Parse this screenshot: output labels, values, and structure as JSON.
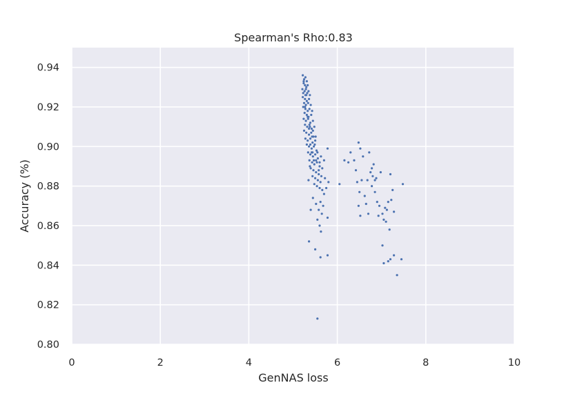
{
  "chart_data": {
    "type": "scatter",
    "title": "Spearman's Rho:0.83",
    "xlabel": "GenNAS loss",
    "ylabel": "Accuracy (%)",
    "xlim": [
      0,
      10
    ],
    "ylim": [
      0.8,
      0.95
    ],
    "xticks": [
      "0",
      "2",
      "4",
      "6",
      "8",
      "10"
    ],
    "yticks": [
      "0.80",
      "0.82",
      "0.84",
      "0.86",
      "0.88",
      "0.90",
      "0.92",
      "0.94"
    ],
    "grid": true,
    "colors": {
      "background": "#EAEAF2",
      "grid": "#FFFFFF",
      "point": "#4C72B0"
    },
    "points": [
      [
        5.22,
        0.936
      ],
      [
        5.25,
        0.934
      ],
      [
        5.28,
        0.935
      ],
      [
        5.31,
        0.933
      ],
      [
        5.24,
        0.932
      ],
      [
        5.27,
        0.931
      ],
      [
        5.3,
        0.93
      ],
      [
        5.33,
        0.931
      ],
      [
        5.21,
        0.929
      ],
      [
        5.26,
        0.928
      ],
      [
        5.29,
        0.929
      ],
      [
        5.35,
        0.928
      ],
      [
        5.23,
        0.927
      ],
      [
        5.28,
        0.926
      ],
      [
        5.32,
        0.927
      ],
      [
        5.38,
        0.926
      ],
      [
        5.22,
        0.925
      ],
      [
        5.27,
        0.924
      ],
      [
        5.31,
        0.923
      ],
      [
        5.36,
        0.924
      ],
      [
        5.25,
        0.922
      ],
      [
        5.29,
        0.921
      ],
      [
        5.34,
        0.922
      ],
      [
        5.4,
        0.921
      ],
      [
        5.23,
        0.92
      ],
      [
        5.28,
        0.919
      ],
      [
        5.33,
        0.918
      ],
      [
        5.37,
        0.919
      ],
      [
        5.43,
        0.918
      ],
      [
        5.26,
        0.917
      ],
      [
        5.31,
        0.916
      ],
      [
        5.35,
        0.915
      ],
      [
        5.41,
        0.916
      ],
      [
        5.24,
        0.914
      ],
      [
        5.29,
        0.913
      ],
      [
        5.34,
        0.914
      ],
      [
        5.39,
        0.912
      ],
      [
        5.45,
        0.913
      ],
      [
        5.27,
        0.911
      ],
      [
        5.32,
        0.91
      ],
      [
        5.37,
        0.911
      ],
      [
        5.42,
        0.909
      ],
      [
        5.48,
        0.91
      ],
      [
        5.25,
        0.908
      ],
      [
        5.3,
        0.907
      ],
      [
        5.36,
        0.906
      ],
      [
        5.41,
        0.907
      ],
      [
        5.46,
        0.905
      ],
      [
        5.28,
        0.904
      ],
      [
        5.33,
        0.903
      ],
      [
        5.39,
        0.904
      ],
      [
        5.44,
        0.902
      ],
      [
        5.5,
        0.903
      ],
      [
        5.31,
        0.901
      ],
      [
        5.36,
        0.9
      ],
      [
        5.42,
        0.899
      ],
      [
        5.47,
        0.9
      ],
      [
        5.53,
        0.898
      ],
      [
        5.34,
        0.897
      ],
      [
        5.39,
        0.896
      ],
      [
        5.45,
        0.895
      ],
      [
        5.5,
        0.896
      ],
      [
        5.56,
        0.894
      ],
      [
        5.37,
        0.893
      ],
      [
        5.43,
        0.892
      ],
      [
        5.48,
        0.891
      ],
      [
        5.54,
        0.892
      ],
      [
        5.6,
        0.89
      ],
      [
        5.4,
        0.889
      ],
      [
        5.46,
        0.888
      ],
      [
        5.52,
        0.887
      ],
      [
        5.58,
        0.886
      ],
      [
        5.44,
        0.885
      ],
      [
        5.5,
        0.884
      ],
      [
        5.56,
        0.883
      ],
      [
        5.62,
        0.882
      ],
      [
        5.48,
        0.881
      ],
      [
        5.54,
        0.88
      ],
      [
        5.6,
        0.879
      ],
      [
        5.66,
        0.878
      ],
      [
        5.24,
        0.933
      ],
      [
        5.3,
        0.926
      ],
      [
        5.27,
        0.92
      ],
      [
        5.33,
        0.915
      ],
      [
        5.38,
        0.91
      ],
      [
        5.43,
        0.905
      ],
      [
        5.49,
        0.901
      ],
      [
        5.55,
        0.897
      ],
      [
        5.52,
        0.893
      ],
      [
        5.6,
        0.892
      ],
      [
        5.35,
        0.883
      ],
      [
        5.45,
        0.874
      ],
      [
        5.52,
        0.871
      ],
      [
        5.58,
        0.868
      ],
      [
        5.65,
        0.866
      ],
      [
        5.4,
        0.868
      ],
      [
        5.62,
        0.872
      ],
      [
        5.7,
        0.876
      ],
      [
        5.75,
        0.879
      ],
      [
        5.8,
        0.882
      ],
      [
        5.55,
        0.863
      ],
      [
        5.6,
        0.86
      ],
      [
        5.63,
        0.857
      ],
      [
        5.78,
        0.864
      ],
      [
        5.68,
        0.87
      ],
      [
        5.72,
        0.884
      ],
      [
        5.78,
        0.899
      ],
      [
        5.66,
        0.889
      ],
      [
        5.7,
        0.893
      ],
      [
        5.64,
        0.885
      ],
      [
        5.36,
        0.852
      ],
      [
        5.5,
        0.848
      ],
      [
        5.62,
        0.844
      ],
      [
        5.78,
        0.845
      ],
      [
        5.55,
        0.813
      ],
      [
        5.42,
        0.897
      ],
      [
        5.47,
        0.893
      ],
      [
        5.38,
        0.89
      ],
      [
        5.58,
        0.888
      ],
      [
        5.63,
        0.895
      ],
      [
        5.45,
        0.908
      ],
      [
        5.51,
        0.905
      ],
      [
        5.39,
        0.901
      ],
      [
        5.44,
        0.897
      ],
      [
        5.36,
        0.909
      ],
      [
        6.05,
        0.881
      ],
      [
        6.16,
        0.893
      ],
      [
        6.25,
        0.892
      ],
      [
        6.3,
        0.897
      ],
      [
        6.38,
        0.893
      ],
      [
        6.42,
        0.888
      ],
      [
        6.48,
        0.902
      ],
      [
        6.52,
        0.899
      ],
      [
        6.58,
        0.895
      ],
      [
        6.45,
        0.882
      ],
      [
        6.5,
        0.877
      ],
      [
        6.55,
        0.883
      ],
      [
        6.62,
        0.875
      ],
      [
        6.68,
        0.883
      ],
      [
        6.72,
        0.897
      ],
      [
        6.75,
        0.887
      ],
      [
        6.78,
        0.889
      ],
      [
        6.8,
        0.885
      ],
      [
        6.82,
        0.891
      ],
      [
        6.85,
        0.883
      ],
      [
        6.48,
        0.87
      ],
      [
        6.52,
        0.865
      ],
      [
        6.7,
        0.866
      ],
      [
        6.85,
        0.877
      ],
      [
        6.9,
        0.872
      ],
      [
        6.95,
        0.87
      ],
      [
        6.98,
        0.887
      ],
      [
        7.02,
        0.866
      ],
      [
        7.05,
        0.863
      ],
      [
        7.1,
        0.862
      ],
      [
        7.12,
        0.868
      ],
      [
        7.15,
        0.872
      ],
      [
        7.18,
        0.858
      ],
      [
        7.22,
        0.873
      ],
      [
        7.25,
        0.878
      ],
      [
        7.28,
        0.867
      ],
      [
        7.2,
        0.886
      ],
      [
        7.02,
        0.85
      ],
      [
        7.05,
        0.841
      ],
      [
        7.15,
        0.842
      ],
      [
        7.2,
        0.843
      ],
      [
        7.28,
        0.845
      ],
      [
        7.35,
        0.835
      ],
      [
        7.45,
        0.843
      ],
      [
        7.48,
        0.881
      ],
      [
        6.88,
        0.884
      ],
      [
        6.78,
        0.88
      ],
      [
        6.65,
        0.871
      ],
      [
        7.08,
        0.869
      ],
      [
        6.93,
        0.865
      ]
    ]
  }
}
